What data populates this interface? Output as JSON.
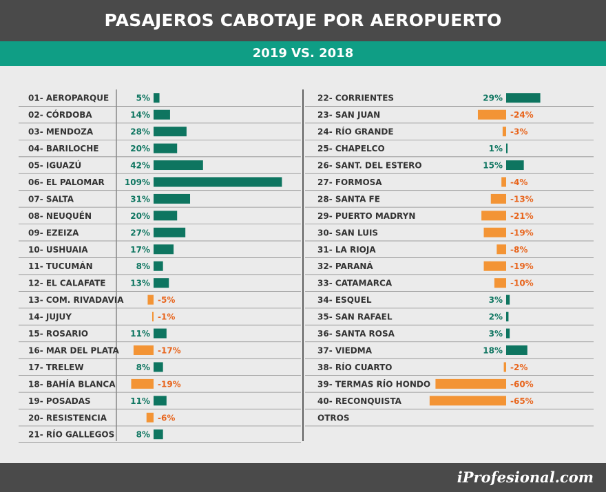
{
  "header": {
    "title": "PASAJEROS CABOTAJE POR AEROPUERTO",
    "subtitle": "2019 VS. 2018"
  },
  "footer": {
    "brand": "iProfesional.com"
  },
  "colors": {
    "positive": "#0e7560",
    "negative": "#f39435",
    "negative_text": "#e8651d",
    "teal_band": "#0f9e85",
    "dark_band": "#4a4a4a"
  },
  "chart_data": {
    "type": "bar",
    "orientation": "horizontal-diverging",
    "unit": "%",
    "columns": [
      {
        "rows": [
          {
            "label": "01- AEROPARQUE",
            "value": 5,
            "display": "5%"
          },
          {
            "label": "02- CÓRDOBA",
            "value": 14,
            "display": "14%"
          },
          {
            "label": "03- MENDOZA",
            "value": 28,
            "display": "28%"
          },
          {
            "label": "04- BARILOCHE",
            "value": 20,
            "display": "20%"
          },
          {
            "label": "05- IGUAZÚ",
            "value": 42,
            "display": "42%"
          },
          {
            "label": "06- EL PALOMAR",
            "value": 109,
            "display": "109%"
          },
          {
            "label": "07- SALTA",
            "value": 31,
            "display": "31%"
          },
          {
            "label": "08- NEUQUÉN",
            "value": 20,
            "display": "20%"
          },
          {
            "label": "09- EZEIZA",
            "value": 27,
            "display": "27%"
          },
          {
            "label": "10- USHUAIA",
            "value": 17,
            "display": "17%"
          },
          {
            "label": "11- TUCUMÁN",
            "value": 8,
            "display": "8%"
          },
          {
            "label": "12- EL CALAFATE",
            "value": 13,
            "display": "13%"
          },
          {
            "label": "13- COM. RIVADAVIA",
            "value": -5,
            "display": "-5%"
          },
          {
            "label": "14- JUJUY",
            "value": -1,
            "display": "-1%"
          },
          {
            "label": "15- ROSARIO",
            "value": 11,
            "display": "11%"
          },
          {
            "label": "16- MAR DEL PLATA",
            "value": -17,
            "display": "-17%"
          },
          {
            "label": "17- TRELEW",
            "value": 8,
            "display": "8%"
          },
          {
            "label": "18- BAHÍA BLANCA",
            "value": -19,
            "display": "-19%"
          },
          {
            "label": "19- POSADAS",
            "value": 11,
            "display": "11%"
          },
          {
            "label": "20- RESISTENCIA",
            "value": -6,
            "display": "-6%"
          },
          {
            "label": "21- RÍO GALLEGOS",
            "value": 8,
            "display": "8%"
          }
        ]
      },
      {
        "rows": [
          {
            "label": "22- CORRIENTES",
            "value": 29,
            "display": "29%"
          },
          {
            "label": "23- SAN JUAN",
            "value": -24,
            "display": "-24%"
          },
          {
            "label": "24- RÍO GRANDE",
            "value": -3,
            "display": "-3%"
          },
          {
            "label": "25- CHAPELCO",
            "value": 1,
            "display": "1%"
          },
          {
            "label": "26- SANT. DEL ESTERO",
            "value": 15,
            "display": "15%"
          },
          {
            "label": "27- FORMOSA",
            "value": -4,
            "display": "-4%"
          },
          {
            "label": "28- SANTA FE",
            "value": -13,
            "display": "-13%"
          },
          {
            "label": "29- PUERTO MADRYN",
            "value": -21,
            "display": "-21%"
          },
          {
            "label": "30- SAN LUIS",
            "value": -19,
            "display": "-19%"
          },
          {
            "label": "31- LA RIOJA",
            "value": -8,
            "display": "-8%"
          },
          {
            "label": "32- PARANÁ",
            "value": -19,
            "display": "-19%"
          },
          {
            "label": "33- CATAMARCA",
            "value": -10,
            "display": "-10%"
          },
          {
            "label": "34- ESQUEL",
            "value": 3,
            "display": "3%"
          },
          {
            "label": "35- SAN RAFAEL",
            "value": 2,
            "display": "2%"
          },
          {
            "label": "36- SANTA ROSA",
            "value": 3,
            "display": "3%"
          },
          {
            "label": "37- VIEDMA",
            "value": 18,
            "display": "18%"
          },
          {
            "label": "38- RÍO CUARTO",
            "value": -2,
            "display": "-2%"
          },
          {
            "label": "39- TERMAS RÍO HONDO",
            "value": -60,
            "display": "-60%"
          },
          {
            "label": "40- RECONQUISTA",
            "value": -65,
            "display": "-65%"
          },
          {
            "label": "OTROS",
            "value": null,
            "display": ""
          }
        ]
      }
    ]
  }
}
